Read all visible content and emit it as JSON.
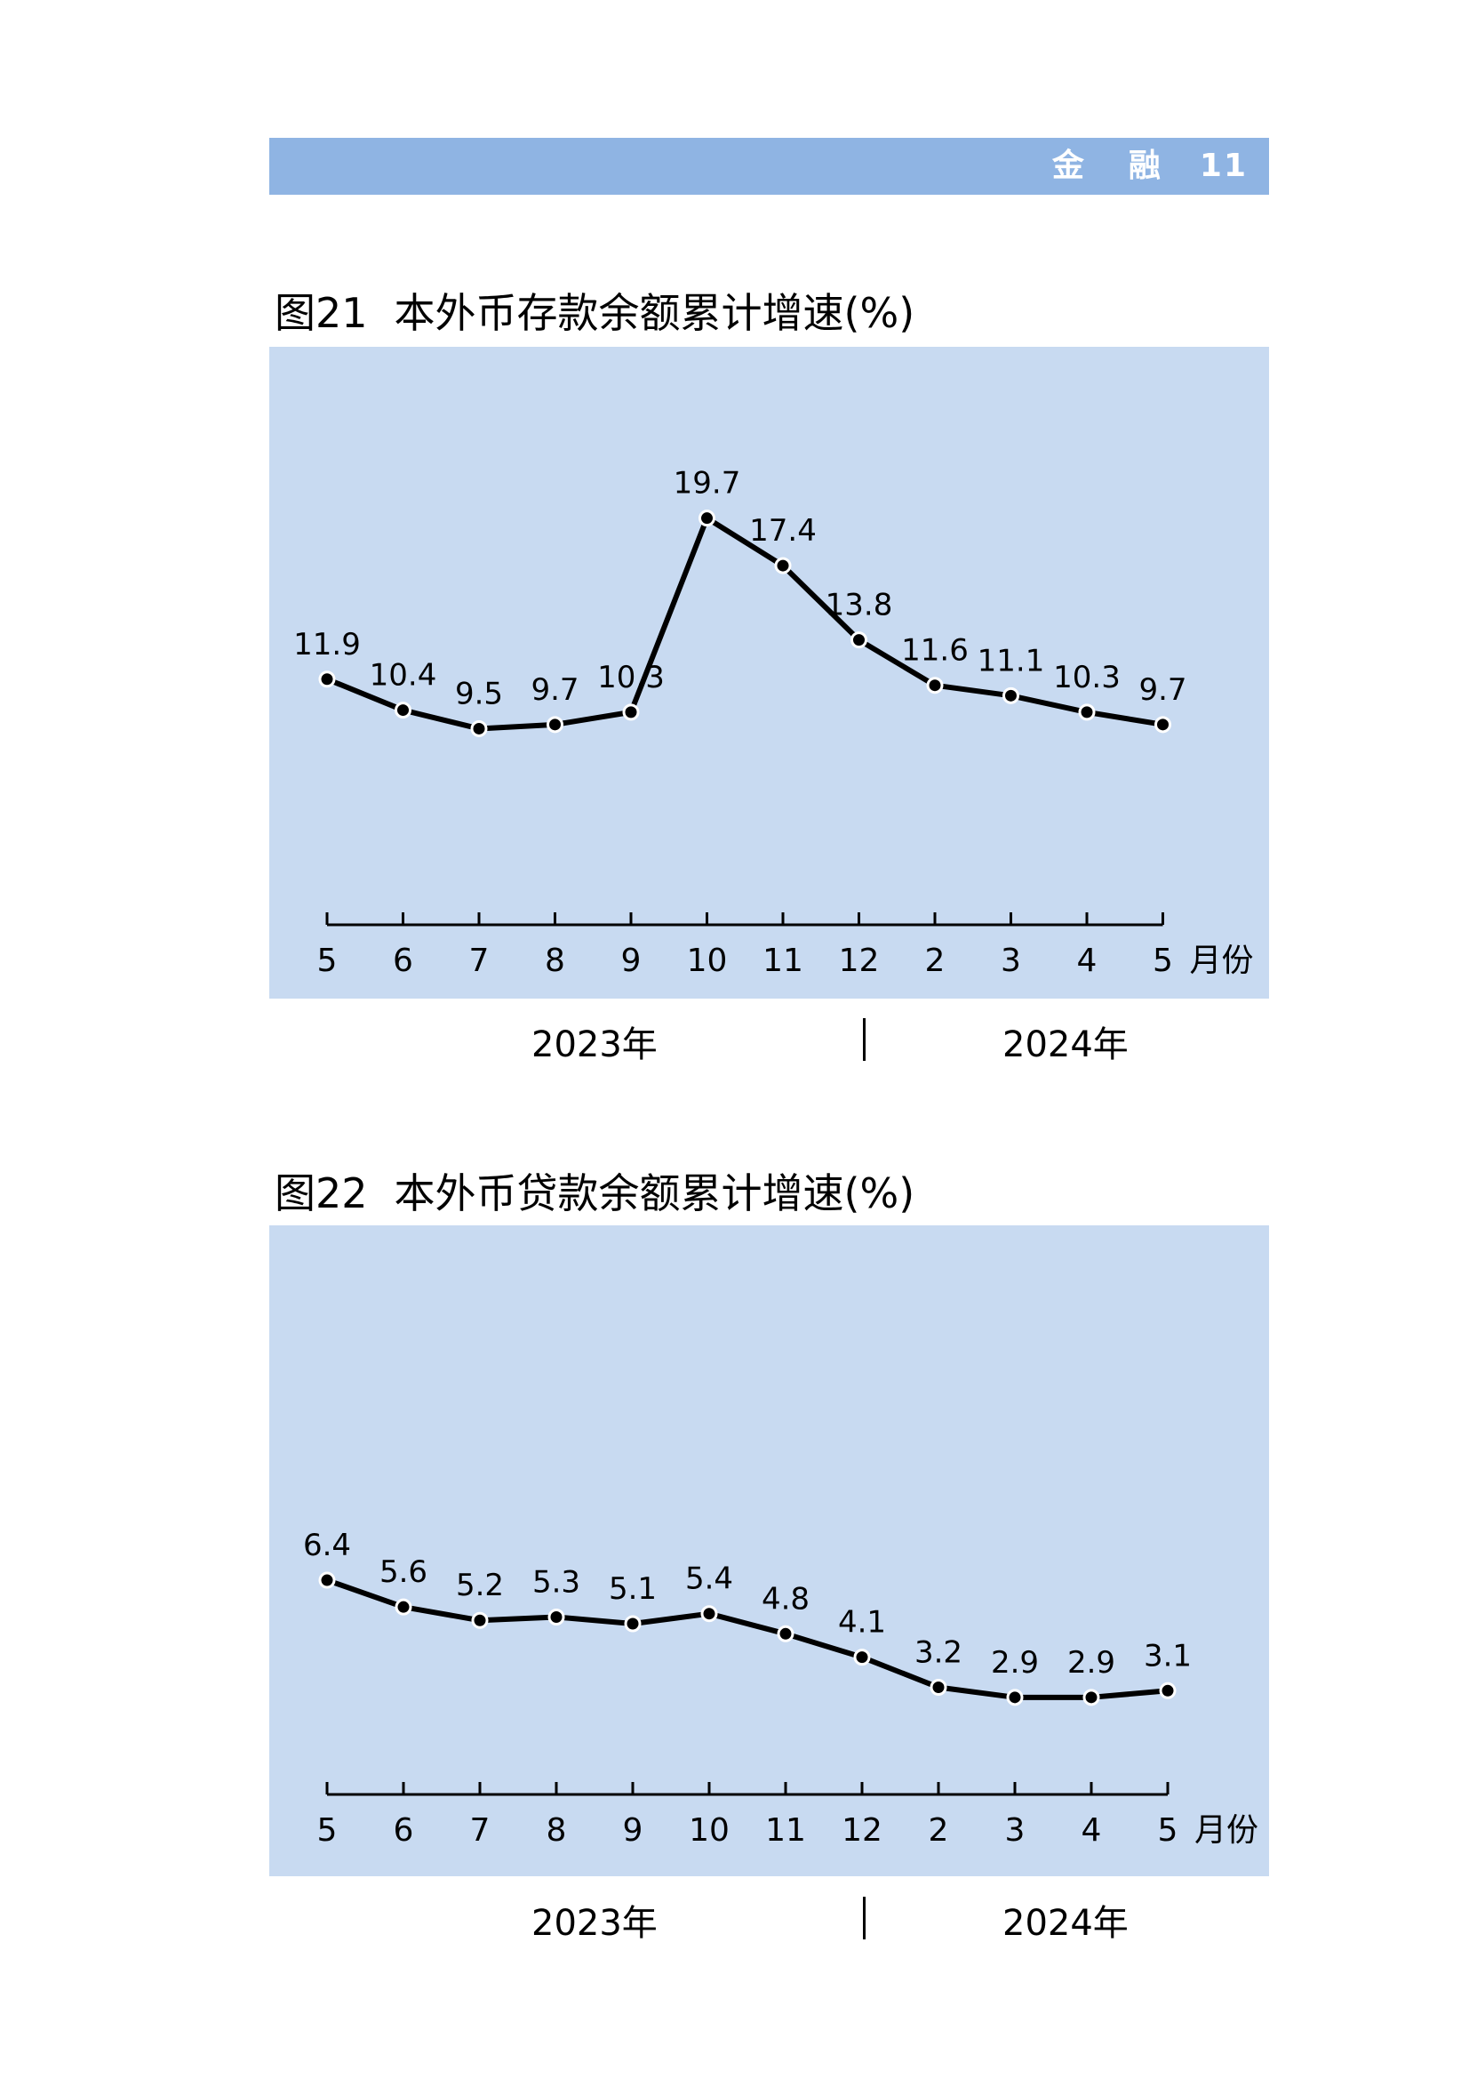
{
  "header": {
    "section_char1": "金",
    "section_char2": "融",
    "page_number": "11"
  },
  "charts": [
    {
      "title_number": "图21",
      "title_text": "本外币存款余额累计增速(%)",
      "unit_label": "月份",
      "year_labels": [
        "2023年",
        "2024年"
      ]
    },
    {
      "title_number": "图22",
      "title_text": "本外币贷款余额累计增速(%)",
      "unit_label": "月份",
      "year_labels": [
        "2023年",
        "2024年"
      ]
    }
  ],
  "chart_data": [
    {
      "type": "line",
      "title": "本外币存款余额累计增速(%)",
      "categories": [
        "5",
        "6",
        "7",
        "8",
        "9",
        "10",
        "11",
        "12",
        "2",
        "3",
        "4",
        "5"
      ],
      "values": [
        11.9,
        10.4,
        9.5,
        9.7,
        10.3,
        19.7,
        17.4,
        13.8,
        11.6,
        11.1,
        10.3,
        9.7
      ],
      "xlabel": "月份",
      "ylabel": "",
      "ylim": [
        0,
        28
      ],
      "grid": false,
      "color": "#000000",
      "background": "#c8daf1"
    },
    {
      "type": "line",
      "title": "本外币贷款余额累计增速(%)",
      "categories": [
        "5",
        "6",
        "7",
        "8",
        "9",
        "10",
        "11",
        "12",
        "2",
        "3",
        "4",
        "5"
      ],
      "values": [
        6.4,
        5.6,
        5.2,
        5.3,
        5.1,
        5.4,
        4.8,
        4.1,
        3.2,
        2.9,
        2.9,
        3.1
      ],
      "xlabel": "月份",
      "ylabel": "",
      "ylim": [
        0,
        17
      ],
      "grid": false,
      "color": "#000000",
      "background": "#c8daf1"
    }
  ]
}
